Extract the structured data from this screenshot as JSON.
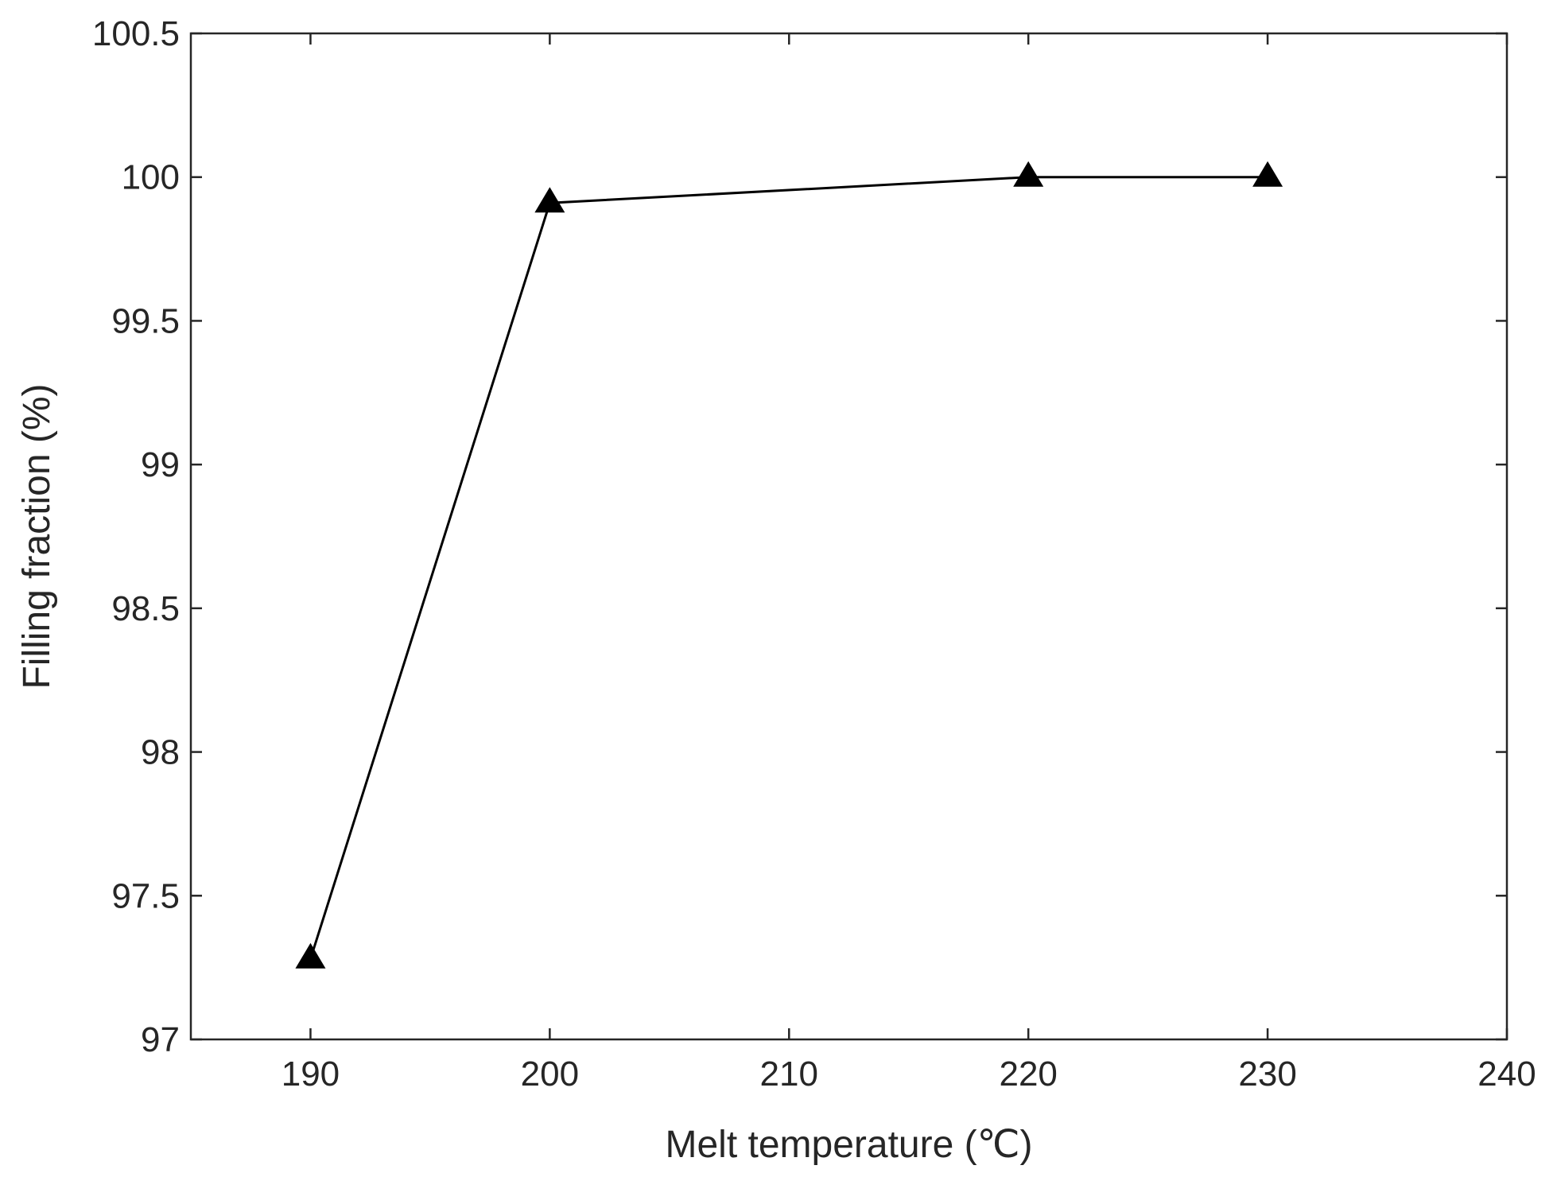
{
  "chart_data": {
    "type": "line",
    "title": "",
    "xlabel": "Melt temperature (℃)",
    "ylabel": "Filling fraction (%)",
    "xlim": [
      185,
      240
    ],
    "ylim": [
      97,
      100.5
    ],
    "x_ticks": [
      190,
      200,
      210,
      220,
      230,
      240
    ],
    "y_ticks": [
      97,
      97.5,
      98,
      98.5,
      99,
      99.5,
      100,
      100.5
    ],
    "grid": false,
    "legend": "none",
    "series": [
      {
        "marker": "triangle",
        "color": "#000000",
        "x": [
          190,
          200,
          220,
          230
        ],
        "y": [
          97.28,
          99.91,
          100.0,
          100.0
        ]
      }
    ]
  }
}
